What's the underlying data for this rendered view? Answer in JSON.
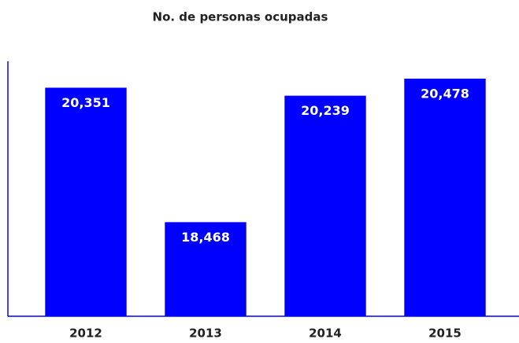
{
  "chart_data": {
    "type": "bar",
    "title": "No. de personas ocupadas",
    "categories": [
      "2012",
      "2013",
      "2014",
      "2015"
    ],
    "values": [
      20351,
      18468,
      20239,
      20478
    ],
    "value_labels": [
      "20,351",
      "18,468",
      "20,239",
      "20,478"
    ],
    "color": "#0000ff",
    "label_color": "#ffffff",
    "ylim": [
      17150,
      20720
    ]
  }
}
